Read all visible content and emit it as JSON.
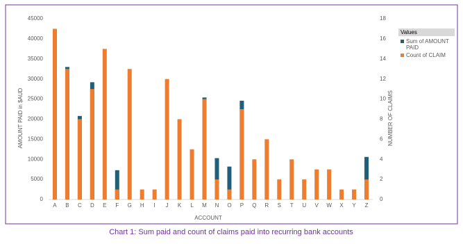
{
  "chart_data": {
    "type": "bar",
    "caption": "Chart 1: Sum paid and count of claims paid into recurring bank accounts",
    "x_label": "ACCOUNT",
    "y_label": "AMOUNT PAID in $AUD",
    "y2_label": "NUMBER OF CLAIMS",
    "legend_title": "Values",
    "categories": [
      "A",
      "B",
      "C",
      "D",
      "E",
      "F",
      "G",
      "H",
      "I",
      "J",
      "K",
      "L",
      "M",
      "N",
      "O",
      "P",
      "Q",
      "R",
      "S",
      "T",
      "U",
      "V",
      "W",
      "X",
      "Y",
      "Z"
    ],
    "series": [
      {
        "name": "Sum of AMOUNT PAID",
        "color": "#1f5f7a",
        "axis": "y",
        "values": [
          null,
          33000,
          20800,
          29200,
          null,
          7300,
          null,
          null,
          null,
          null,
          null,
          null,
          25400,
          10300,
          8200,
          24600,
          null,
          null,
          null,
          null,
          null,
          null,
          null,
          null,
          null,
          10600
        ]
      },
      {
        "name": "Count of CLAIM",
        "color": "#ed7d31",
        "axis": "y2",
        "values": [
          17,
          13,
          8,
          11,
          15,
          1,
          13,
          1,
          1,
          12,
          8,
          5,
          10,
          2,
          1,
          9,
          4,
          6,
          2,
          4,
          2,
          3,
          3,
          1,
          1,
          2
        ]
      }
    ],
    "ylim": [
      0,
      45000
    ],
    "yticks": [
      0,
      5000,
      10000,
      15000,
      20000,
      25000,
      30000,
      35000,
      40000,
      45000
    ],
    "y2lim": [
      0,
      18
    ],
    "y2ticks": [
      0,
      2,
      4,
      6,
      8,
      10,
      12,
      14,
      16,
      18
    ],
    "grid": false,
    "legend": "right"
  }
}
